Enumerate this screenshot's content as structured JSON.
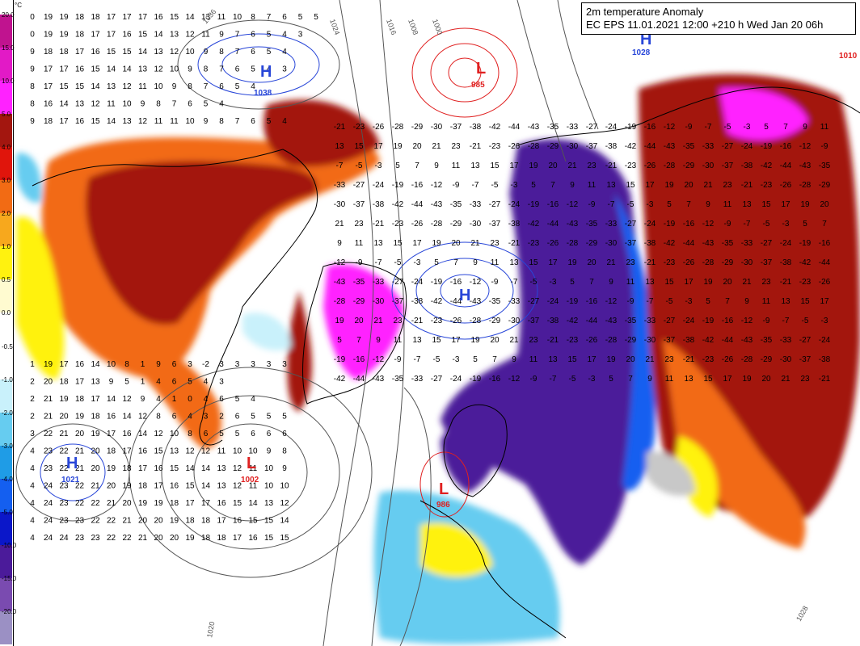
{
  "title": {
    "line1": "2m temperature Anomaly",
    "line2": "EC EPS 11.01.2021 12:00 +210 h Wed Jan 20 06h"
  },
  "legend": {
    "unit": "°C",
    "entries": [
      {
        "label": "20.0",
        "color": "#c0138f"
      },
      {
        "label": "15.0",
        "color": "#e21ac6"
      },
      {
        "label": "10.0",
        "color": "#ff22ff"
      },
      {
        "label": "5.0",
        "color": "#a3160f"
      },
      {
        "label": "4.0",
        "color": "#e0150c"
      },
      {
        "label": "3.0",
        "color": "#f26b14"
      },
      {
        "label": "2.0",
        "color": "#f7a81d"
      },
      {
        "label": "1.0",
        "color": "#fff20f"
      },
      {
        "label": "0.5",
        "color": "#fffbd0"
      },
      {
        "label": "0.0",
        "color": "#ffffff"
      },
      {
        "label": "-0.5",
        "color": "#ffffff"
      },
      {
        "label": "-1.0",
        "color": "#c9f1fb"
      },
      {
        "label": "-2.0",
        "color": "#66ccf0"
      },
      {
        "label": "-3.0",
        "color": "#1f9ce6"
      },
      {
        "label": "-4.0",
        "color": "#145ff0"
      },
      {
        "label": "-5.0",
        "color": "#0b17c9"
      },
      {
        "label": "-10.0",
        "color": "#4b1b9a"
      },
      {
        "label": "-15.0",
        "color": "#7a4bb0"
      },
      {
        "label": "-20.0",
        "color": "#9b90c4"
      }
    ]
  },
  "pressure_centers": [
    {
      "type": "H",
      "value": "1038",
      "color": "#2846d8"
    },
    {
      "type": "L",
      "value": "985",
      "color": "#e02020"
    },
    {
      "type": "H",
      "value": "1028",
      "color": "#2846d8"
    },
    {
      "type": "H",
      "value": "",
      "color": "#2846d8"
    },
    {
      "type": "H",
      "value": "1021",
      "color": "#2846d8"
    },
    {
      "type": "L",
      "value": "1002",
      "color": "#e02020"
    },
    {
      "type": "L",
      "value": "986",
      "color": "#e02020"
    },
    {
      "type": "L",
      "value": "1010",
      "color": "#e02020"
    }
  ],
  "isobar_labels": [
    "1020",
    "1024",
    "1016",
    "1008",
    "1000",
    "1028",
    "1036"
  ],
  "grid_rows": [
    [
      "0",
      "19",
      "19",
      "18",
      "18",
      "17",
      "17",
      "17",
      "16",
      "15",
      "14",
      "13",
      "11",
      "10",
      "8",
      "7",
      "6",
      "5",
      "5"
    ],
    [
      "0",
      "19",
      "19",
      "18",
      "17",
      "17",
      "16",
      "15",
      "14",
      "13",
      "12",
      "11",
      "9",
      "7",
      "6",
      "5",
      "4",
      "3"
    ],
    [
      "9",
      "18",
      "18",
      "17",
      "16",
      "15",
      "15",
      "14",
      "13",
      "12",
      "10",
      "9",
      "8",
      "7",
      "6",
      "5",
      "4"
    ],
    [
      "9",
      "17",
      "17",
      "16",
      "15",
      "14",
      "14",
      "13",
      "12",
      "10",
      "9",
      "8",
      "7",
      "6",
      "5",
      "4",
      "3"
    ],
    [
      "8",
      "17",
      "15",
      "15",
      "14",
      "13",
      "12",
      "11",
      "10",
      "9",
      "8",
      "7",
      "6",
      "5",
      "4"
    ],
    [
      "8",
      "16",
      "14",
      "13",
      "12",
      "11",
      "10",
      "9",
      "8",
      "7",
      "6",
      "5",
      "4"
    ],
    [
      "9",
      "18",
      "17",
      "16",
      "15",
      "14",
      "13",
      "12",
      "11",
      "11",
      "10",
      "9",
      "8",
      "7",
      "6",
      "5",
      "4"
    ],
    [
      "1",
      "19",
      "17",
      "16",
      "14",
      "10",
      "8",
      "1",
      "9",
      "6",
      "3",
      "-2",
      "3",
      "3",
      "3",
      "3",
      "3"
    ],
    [
      "2",
      "20",
      "18",
      "17",
      "13",
      "9",
      "5",
      "1",
      "4",
      "6",
      "5",
      "4",
      "3"
    ],
    [
      "2",
      "21",
      "19",
      "18",
      "17",
      "14",
      "12",
      "9",
      "4",
      "1",
      "0",
      "4",
      "6",
      "5",
      "4"
    ],
    [
      "2",
      "21",
      "20",
      "19",
      "18",
      "16",
      "14",
      "12",
      "8",
      "6",
      "4",
      "3",
      "2",
      "6",
      "5",
      "5",
      "5"
    ],
    [
      "3",
      "22",
      "21",
      "20",
      "19",
      "17",
      "16",
      "14",
      "12",
      "10",
      "8",
      "6",
      "5",
      "5",
      "6",
      "6",
      "6"
    ],
    [
      "4",
      "23",
      "22",
      "21",
      "20",
      "18",
      "17",
      "16",
      "15",
      "13",
      "12",
      "12",
      "11",
      "10",
      "10",
      "9",
      "8"
    ],
    [
      "4",
      "23",
      "22",
      "21",
      "20",
      "19",
      "18",
      "17",
      "16",
      "15",
      "14",
      "14",
      "13",
      "12",
      "11",
      "10",
      "9"
    ],
    [
      "4",
      "24",
      "23",
      "22",
      "21",
      "20",
      "19",
      "18",
      "17",
      "16",
      "15",
      "14",
      "13",
      "12",
      "11",
      "10",
      "10"
    ],
    [
      "4",
      "24",
      "23",
      "22",
      "22",
      "21",
      "20",
      "19",
      "19",
      "18",
      "17",
      "17",
      "16",
      "15",
      "14",
      "13",
      "12"
    ],
    [
      "4",
      "24",
      "23",
      "23",
      "22",
      "22",
      "21",
      "20",
      "20",
      "19",
      "18",
      "18",
      "17",
      "16",
      "15",
      "15",
      "14"
    ],
    [
      "4",
      "24",
      "24",
      "23",
      "23",
      "22",
      "22",
      "21",
      "20",
      "20",
      "19",
      "18",
      "18",
      "17",
      "16",
      "15",
      "15"
    ]
  ],
  "interior_values": [
    "-21",
    "-23",
    "-26",
    "-28",
    "-29",
    "-30",
    "-37",
    "-38",
    "-42",
    "-44",
    "-43",
    "-35",
    "-33",
    "-27",
    "-24",
    "-19",
    "-16",
    "-12",
    "-9",
    "-7",
    "-5",
    "-3",
    "5",
    "7",
    "9",
    "11",
    "13",
    "15",
    "17",
    "19",
    "20",
    "21",
    "23"
  ]
}
